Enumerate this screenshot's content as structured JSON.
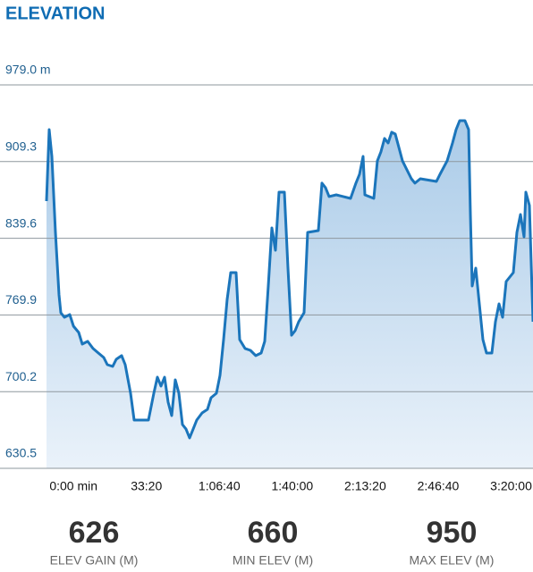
{
  "chart_data": {
    "type": "area",
    "title": "ELEVATION",
    "x": [
      -740,
      -666,
      -593,
      -495,
      -397,
      -348,
      -250,
      -102,
      0,
      143,
      241,
      388,
      535,
      682,
      829,
      927,
      1074,
      1173,
      1320,
      1418,
      1565,
      1663,
      2055,
      2202,
      2300,
      2399,
      2497,
      2595,
      2693,
      2791,
      2889,
      2987,
      3085,
      3183,
      3281,
      3379,
      3526,
      3674,
      3772,
      3919,
      4017,
      4115,
      4213,
      4311,
      4458,
      4556,
      4703,
      4851,
      4998,
      5145,
      5243,
      5341,
      5439,
      5537,
      5635,
      5782,
      5880,
      5978,
      6077,
      6175,
      6322,
      6420,
      6714,
      6812,
      6910,
      7008,
      7204,
      7597,
      7744,
      7842,
      7940,
      7989,
      8234,
      8332,
      8430,
      8529,
      8627,
      8725,
      8823,
      8921,
      9019,
      9166,
      9264,
      9362,
      9510,
      9951,
      10049,
      10245,
      10392,
      10490,
      10588,
      10735,
      10834,
      10883,
      10932,
      11030,
      11128,
      11226,
      11324,
      11471,
      11569,
      11667,
      11766,
      11864,
      12060,
      12158,
      12256,
      12354,
      12403,
      12501,
      12599
    ],
    "series": [
      {
        "color": "#1b75bb",
        "values": [
          873.4,
          938.4,
          914.0,
          845.0,
          788.1,
          771.9,
          767.8,
          770.2,
          759.7,
          754.0,
          743.4,
          745.9,
          739.4,
          735.3,
          731.2,
          724.7,
          723.1,
          729.6,
          732.9,
          724.7,
          698.7,
          674.4,
          674.4,
          698.7,
          713.4,
          705.2,
          713.4,
          690.6,
          678.4,
          710.9,
          698.7,
          670.3,
          666.2,
          658.1,
          666.2,
          674.4,
          680.9,
          684.1,
          694.7,
          698.7,
          715.0,
          747.5,
          784.0,
          808.4,
          808.4,
          747.5,
          739.4,
          737.7,
          732.9,
          735.3,
          745.9,
          796.2,
          849.0,
          828.7,
          881.5,
          881.5,
          812.5,
          751.5,
          755.6,
          763.7,
          771.9,
          845.0,
          846.6,
          889.7,
          885.6,
          877.5,
          879.1,
          875.8,
          889.7,
          897.8,
          914.0,
          879.1,
          875.8,
          910.0,
          918.1,
          930.3,
          926.2,
          936.0,
          934.3,
          922.2,
          910.0,
          900.2,
          893.7,
          889.7,
          893.7,
          891.3,
          897.8,
          910.0,
          926.2,
          938.4,
          946.5,
          946.5,
          938.4,
          861.2,
          796.2,
          812.5,
          780.0,
          747.5,
          735.3,
          735.3,
          763.7,
          780.0,
          767.8,
          800.3,
          808.4,
          845.0,
          861.2,
          840.9,
          881.5,
          869.4,
          763.7
        ]
      }
    ],
    "xlim": [
      -740,
      12600
    ],
    "xticks": [
      {
        "value": 0,
        "label": "0:00 min"
      },
      {
        "value": 2000,
        "label": "33:20"
      },
      {
        "value": 4000,
        "label": "1:06:40"
      },
      {
        "value": 6000,
        "label": "1:40:00"
      },
      {
        "value": 8000,
        "label": "2:13:20"
      },
      {
        "value": 10000,
        "label": "2:46:40"
      },
      {
        "value": 12000,
        "label": "3:20:00"
      }
    ],
    "ylim": [
      630.5,
      979.0
    ],
    "yticks": [
      {
        "value": 979.0,
        "label": "979.0 m"
      },
      909.3,
      839.6,
      769.9,
      700.2,
      630.5
    ],
    "grid": true
  },
  "stats": [
    {
      "value": 626,
      "label": "ELEV GAIN (M)"
    },
    {
      "value": 660,
      "label": "MIN ELEV (M)"
    },
    {
      "value": 950,
      "label": "MAX ELEV (M)"
    }
  ]
}
